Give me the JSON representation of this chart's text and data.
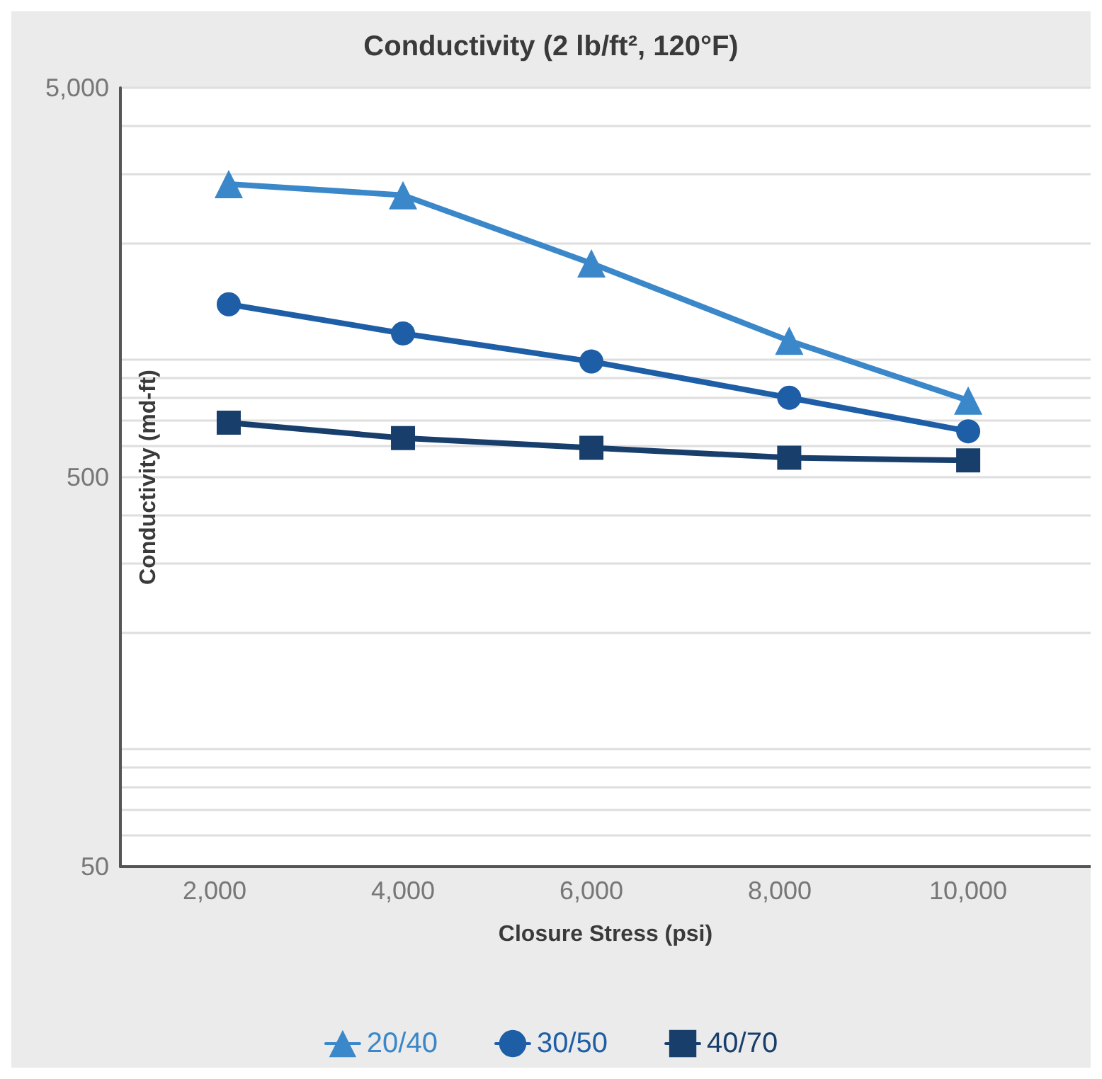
{
  "chart_data": {
    "type": "line",
    "title": "Conductivity (2 lb/ft², 120°F)",
    "xlabel": "Closure Stress (psi)",
    "ylabel": "Conductivity (md-ft)",
    "x": [
      2150,
      4000,
      6000,
      8100,
      10000
    ],
    "series": [
      {
        "name": "20/40",
        "color": "#3a87c9",
        "marker": "triangle",
        "values": [
          2830,
          2650,
          1770,
          1120,
          787
        ]
      },
      {
        "name": "30/50",
        "color": "#1e5ea6",
        "marker": "circle",
        "values": [
          1390,
          1170,
          991,
          800,
          656
        ]
      },
      {
        "name": "40/70",
        "color": "#183f6c",
        "marker": "square",
        "values": [
          690,
          630,
          595,
          561,
          552
        ]
      }
    ],
    "xlim": [
      1000,
      11300
    ],
    "xticks": [
      {
        "value": 2000,
        "label": "2,000"
      },
      {
        "value": 4000,
        "label": "4,000"
      },
      {
        "value": 6000,
        "label": "6,000"
      },
      {
        "value": 8000,
        "label": "8,000"
      },
      {
        "value": 10000,
        "label": "10,000"
      }
    ],
    "ylim": [
      50,
      5000
    ],
    "log": "y",
    "yticks": [
      50,
      {
        "value": 60,
        "label": null
      },
      {
        "value": 70,
        "label": null
      },
      {
        "value": 80,
        "label": null
      },
      {
        "value": 90,
        "label": null
      },
      {
        "value": 100,
        "label": null
      },
      {
        "value": 200,
        "label": null
      },
      {
        "value": 300,
        "label": null
      },
      {
        "value": 400,
        "label": null
      },
      500,
      {
        "value": 600,
        "label": null
      },
      {
        "value": 700,
        "label": null
      },
      {
        "value": 800,
        "label": null
      },
      {
        "value": 900,
        "label": null
      },
      {
        "value": 1000,
        "label": null
      },
      {
        "value": 2000,
        "label": null
      },
      {
        "value": 3000,
        "label": null
      },
      {
        "value": 4000,
        "label": null
      },
      {
        "value": 5000,
        "label": "5,000"
      }
    ],
    "grid": "y",
    "legend": "bottom",
    "line_style": "solid"
  }
}
